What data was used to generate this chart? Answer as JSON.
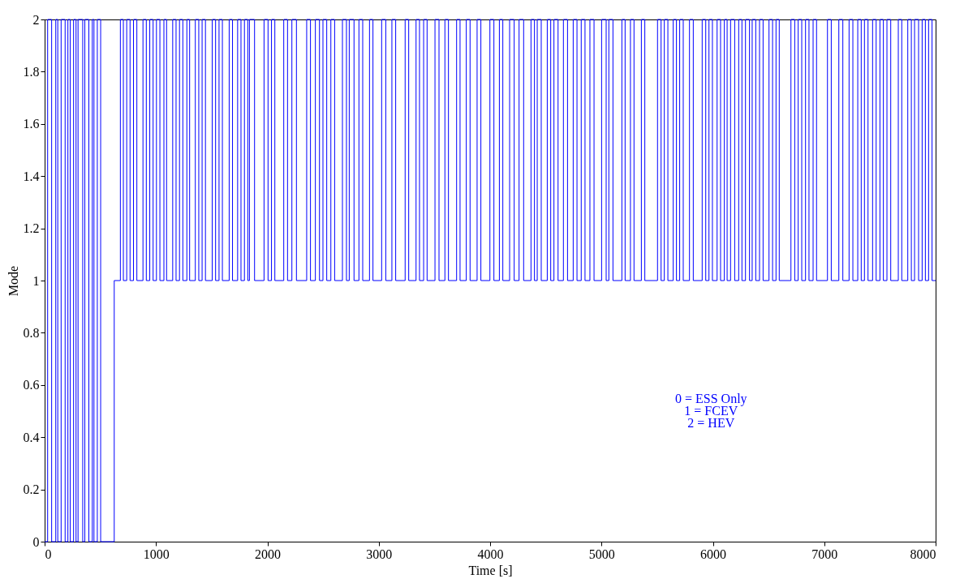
{
  "chart_data": {
    "type": "step",
    "xlabel": "Time [s]",
    "ylabel": "Mode",
    "xlim": [
      0,
      8000
    ],
    "xticks": [
      0,
      1000,
      2000,
      3000,
      4000,
      5000,
      6000,
      7000,
      8000
    ],
    "ylim": [
      0,
      2
    ],
    "yticks": [
      0,
      0.2,
      0.4,
      0.6,
      0.8,
      1,
      1.2,
      1.4,
      1.6,
      1.8,
      2
    ],
    "grid": false,
    "marker": "none",
    "line_style": "solid",
    "annotations": [
      "0 = ESS Only",
      "1 = FCEV",
      "2 = HEV"
    ],
    "series": [
      {
        "color": "#0000ff",
        "x": [
          0,
          27,
          63,
          100,
          118,
          148,
          184,
          209,
          230,
          260,
          282,
          300,
          342,
          361,
          397,
          428,
          443,
          473,
          503,
          625,
          680,
          707,
          737,
          767,
          798,
          828,
          883,
          913,
          944,
          974,
          1004,
          1035,
          1071,
          1095,
          1150,
          1180,
          1211,
          1241,
          1277,
          1302,
          1353,
          1384,
          1414,
          1444,
          1505,
          1535,
          1566,
          1596,
          1657,
          1687,
          1733,
          1763,
          1794,
          1824,
          1839,
          1885,
          1970,
          2006,
          2037,
          2067,
          2147,
          2181,
          2220,
          2261,
          2353,
          2387,
          2431,
          2468,
          2499,
          2533,
          2570,
          2604,
          2674,
          2710,
          2735,
          2778,
          2822,
          2856,
          2917,
          2948,
          3026,
          3063,
          3118,
          3152,
          3237,
          3269,
          3335,
          3366,
          3403,
          3434,
          3505,
          3541,
          3594,
          3626,
          3699,
          3730,
          3786,
          3820,
          3883,
          3917,
          3998,
          4034,
          4083,
          4114,
          4175,
          4216,
          4260,
          4301,
          4367,
          4398,
          4423,
          4459,
          4513,
          4544,
          4573,
          4610,
          4658,
          4695,
          4746,
          4780,
          4818,
          4852,
          4896,
          4933,
          5001,
          5042,
          5066,
          5103,
          5183,
          5212,
          5260,
          5292,
          5358,
          5389,
          5503,
          5535,
          5564,
          5596,
          5644,
          5673,
          5702,
          5734,
          5790,
          5824,
          5904,
          5936,
          5965,
          5996,
          6038,
          6069,
          6103,
          6128,
          6159,
          6196,
          6232,
          6261,
          6293,
          6329,
          6353,
          6385,
          6419,
          6451,
          6504,
          6536,
          6567,
          6596,
          6701,
          6735,
          6766,
          6798,
          6832,
          6863,
          6900,
          6931,
          7029,
          7063,
          7131,
          7167,
          7223,
          7257,
          7301,
          7332,
          7361,
          7393,
          7434,
          7466,
          7500,
          7531,
          7563,
          7597,
          7665,
          7696,
          7750,
          7782,
          7811,
          7847,
          7879,
          7908,
          7937,
          7968,
          8000
        ],
        "values": [
          0,
          2,
          0,
          2,
          0,
          2,
          0,
          2,
          0,
          2,
          0,
          2,
          0,
          2,
          0,
          2,
          0,
          2,
          0,
          1,
          2,
          1,
          2,
          1,
          2,
          1,
          2,
          1,
          2,
          1,
          2,
          1,
          2,
          1,
          2,
          1,
          2,
          1,
          2,
          1,
          2,
          1,
          2,
          1,
          2,
          1,
          2,
          1,
          2,
          1,
          2,
          1,
          2,
          1,
          2,
          1,
          2,
          1,
          2,
          1,
          2,
          1,
          2,
          1,
          2,
          1,
          2,
          1,
          2,
          1,
          2,
          1,
          2,
          1,
          2,
          1,
          2,
          1,
          2,
          1,
          2,
          1,
          2,
          1,
          2,
          1,
          2,
          1,
          2,
          1,
          2,
          1,
          2,
          1,
          2,
          1,
          2,
          1,
          2,
          1,
          2,
          1,
          2,
          1,
          2,
          1,
          2,
          1,
          2,
          1,
          2,
          1,
          2,
          1,
          2,
          1,
          2,
          1,
          2,
          1,
          2,
          1,
          2,
          1,
          2,
          1,
          2,
          1,
          2,
          1,
          2,
          1,
          2,
          1,
          2,
          1,
          2,
          1,
          2,
          1,
          2,
          1,
          2,
          1,
          2,
          1,
          2,
          1,
          2,
          1,
          2,
          1,
          2,
          1,
          2,
          1,
          2,
          1,
          2,
          1,
          2,
          1,
          2,
          1,
          2,
          1,
          2,
          1,
          2,
          1,
          2,
          1,
          2,
          1,
          2,
          1,
          2,
          1,
          2,
          1,
          2,
          1,
          2,
          1,
          2,
          1,
          2,
          1,
          2,
          1,
          2,
          1,
          2,
          1,
          2,
          1,
          2,
          1,
          2,
          1,
          1
        ]
      }
    ]
  }
}
